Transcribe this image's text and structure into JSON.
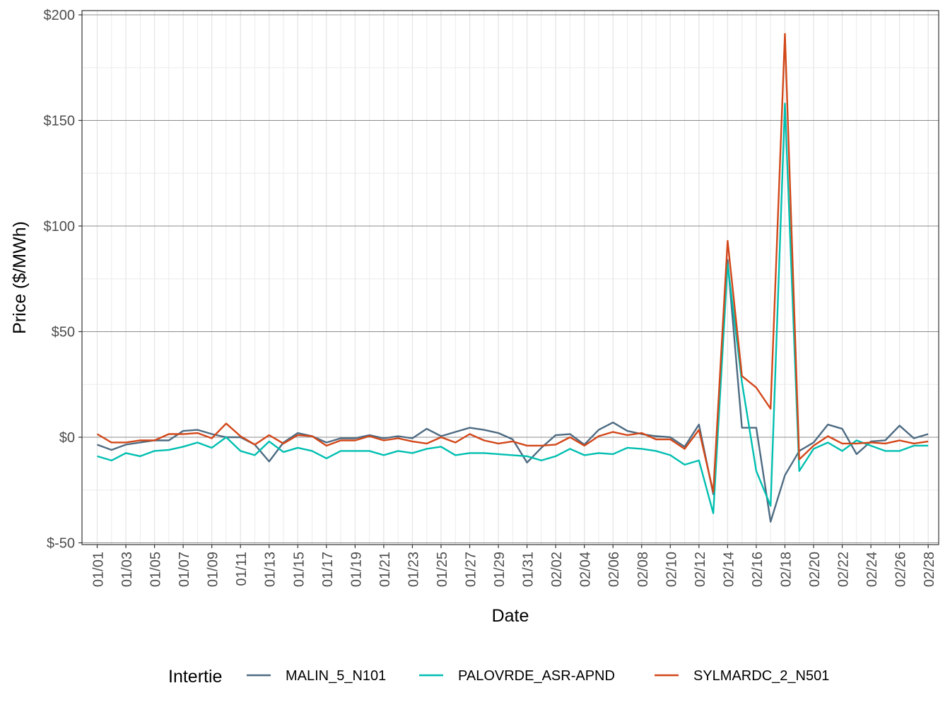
{
  "chart_data": {
    "type": "line",
    "xlabel": "Date",
    "ylabel": "Price ($/MWh)",
    "ylim": [
      -50,
      200
    ],
    "yticks": [
      -50,
      0,
      50,
      100,
      150,
      200
    ],
    "ytick_labels": [
      "$-50",
      "$0",
      "$50",
      "$100",
      "$150",
      "$200"
    ],
    "x": [
      "01/01",
      "01/02",
      "01/03",
      "01/04",
      "01/05",
      "01/06",
      "01/07",
      "01/08",
      "01/09",
      "01/10",
      "01/11",
      "01/12",
      "01/13",
      "01/14",
      "01/15",
      "01/16",
      "01/17",
      "01/18",
      "01/19",
      "01/20",
      "01/21",
      "01/22",
      "01/23",
      "01/24",
      "01/25",
      "01/26",
      "01/27",
      "01/28",
      "01/29",
      "01/30",
      "01/31",
      "02/01",
      "02/02",
      "02/03",
      "02/04",
      "02/05",
      "02/06",
      "02/07",
      "02/08",
      "02/09",
      "02/10",
      "02/11",
      "02/12",
      "02/13",
      "02/14",
      "02/15",
      "02/16",
      "02/17",
      "02/18",
      "02/19",
      "02/20",
      "02/21",
      "02/22",
      "02/23",
      "02/24",
      "02/25",
      "02/26",
      "02/27",
      "02/28"
    ],
    "xtick_labels": [
      "01/01",
      "01/03",
      "01/05",
      "01/07",
      "01/09",
      "01/11",
      "01/13",
      "01/15",
      "01/17",
      "01/19",
      "01/21",
      "01/23",
      "01/25",
      "01/27",
      "01/29",
      "01/31",
      "02/02",
      "02/04",
      "02/06",
      "02/08",
      "02/10",
      "02/12",
      "02/14",
      "02/16",
      "02/18",
      "02/20",
      "02/22",
      "02/24",
      "02/26",
      "02/28"
    ],
    "grid": true,
    "legend": {
      "title": "Intertie",
      "position": "bottom"
    },
    "series": [
      {
        "name": "MALIN_5_N101",
        "color": "#4e6b82",
        "values": [
          -3.5,
          -6,
          -3.5,
          -2.5,
          -1.5,
          -1.5,
          3,
          3.5,
          1.5,
          0,
          0,
          -3.5,
          -11.5,
          -2.5,
          2,
          0.5,
          -2.5,
          -0.5,
          -0.5,
          1,
          -0.5,
          0.5,
          -0.5,
          4,
          0.5,
          2.5,
          4.5,
          3.5,
          2,
          -1,
          -12,
          -5,
          1,
          1.5,
          -3.5,
          3.5,
          7,
          3,
          1.5,
          0.5,
          0,
          -4.5,
          6,
          -27,
          84,
          4.5,
          4.5,
          -40,
          -18,
          -6.5,
          -2.5,
          6,
          4,
          -8,
          -2,
          -1.5,
          5.5,
          -0.5,
          1.5
        ]
      },
      {
        "name": "PALOVRDE_ASR-APND",
        "color": "#00bfb0",
        "values": [
          -9,
          -11,
          -7.5,
          -9,
          -6.5,
          -6,
          -4.5,
          -2.5,
          -5,
          0,
          -6.5,
          -8.5,
          -2,
          -7,
          -5,
          -6.5,
          -10,
          -6.5,
          -6.5,
          -6.5,
          -8.5,
          -6.5,
          -7.5,
          -5.5,
          -4.5,
          -8.5,
          -7.5,
          -7.5,
          -8,
          -8.5,
          -9,
          -11,
          -9,
          -5.5,
          -8.5,
          -7.5,
          -8,
          -5,
          -5.5,
          -6.5,
          -8.5,
          -13,
          -11,
          -36,
          82,
          26,
          -16,
          -32.5,
          158,
          -16,
          -5.5,
          -2.5,
          -6.5,
          -1.5,
          -4,
          -6.5,
          -6.5,
          -4,
          -4
        ]
      },
      {
        "name": "SYLMARDC_2_N501",
        "color": "#d24719",
        "values": [
          1.5,
          -2.5,
          -2.5,
          -1.5,
          -1.5,
          1.5,
          1.5,
          2,
          -0.5,
          6.5,
          0.5,
          -3.5,
          1,
          -3,
          1,
          0.5,
          -4,
          -1.5,
          -1.5,
          0.5,
          -1.5,
          -0.5,
          -2,
          -3,
          0,
          -2.5,
          1.5,
          -1.5,
          -3,
          -2,
          -4,
          -4,
          -3.5,
          0,
          -4,
          0.5,
          2.5,
          1,
          2,
          -1,
          -1,
          -5.5,
          3.5,
          -26,
          93,
          29,
          23.5,
          13.5,
          191,
          -10.5,
          -4,
          0.5,
          -3,
          -3,
          -2.5,
          -3,
          -1.5,
          -3,
          -2
        ]
      }
    ]
  }
}
